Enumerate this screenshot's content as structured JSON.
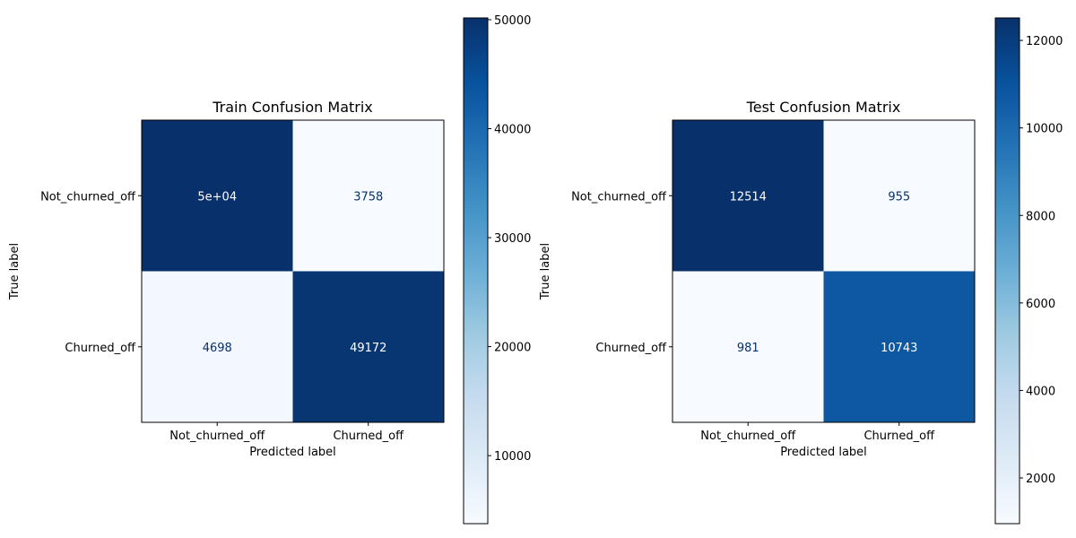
{
  "chart_data": [
    {
      "type": "heatmap",
      "title": "Train Confusion Matrix",
      "xlabel": "Predicted label",
      "ylabel": "True label",
      "x_categories": [
        "Not_churned_off",
        "Churned_off"
      ],
      "y_categories": [
        "Not_churned_off",
        "Churned_off"
      ],
      "values": [
        [
          50162,
          3758
        ],
        [
          4698,
          49172
        ]
      ],
      "annotations": [
        [
          "5e+04",
          "3758"
        ],
        [
          "4698",
          "49172"
        ]
      ],
      "colormap": "Blues",
      "colorbar": {
        "min": 3758,
        "max": 50162,
        "ticks": [
          10000,
          20000,
          30000,
          40000,
          50000
        ]
      },
      "grid": false
    },
    {
      "type": "heatmap",
      "title": "Test Confusion Matrix",
      "xlabel": "Predicted label",
      "ylabel": "True label",
      "x_categories": [
        "Not_churned_off",
        "Churned_off"
      ],
      "y_categories": [
        "Not_churned_off",
        "Churned_off"
      ],
      "values": [
        [
          12514,
          955
        ],
        [
          981,
          10743
        ]
      ],
      "annotations": [
        [
          "12514",
          "955"
        ],
        [
          "981",
          "10743"
        ]
      ],
      "colormap": "Blues",
      "colorbar": {
        "min": 955,
        "max": 12514,
        "ticks": [
          2000,
          4000,
          6000,
          8000,
          10000,
          12000
        ]
      },
      "grid": false
    }
  ]
}
